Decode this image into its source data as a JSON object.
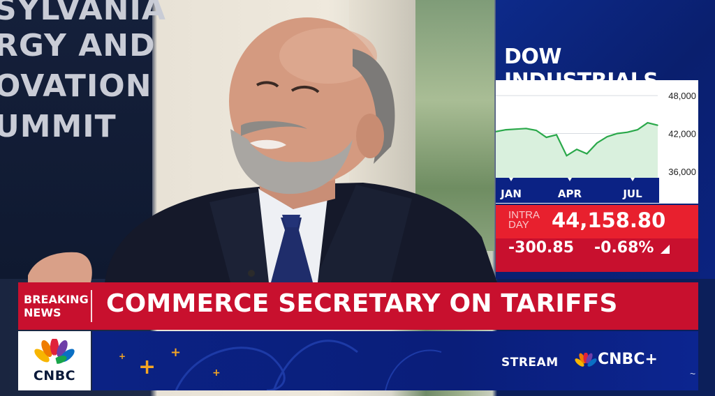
{
  "background_banner": {
    "lines": [
      "SYLVANIA",
      "RGY AND",
      "OVATION",
      "UMMIT"
    ]
  },
  "market_panel": {
    "title": "DOW INDUSTRIALS",
    "intraday_label": "INTRA DAY",
    "index_value": "44,158.80",
    "change_points": "-300.85",
    "change_percent": "-0.68%",
    "direction_icon": "down-triangle-icon",
    "colors": {
      "panel": "#0b2284",
      "value_bg": "#e8202e",
      "change_bg": "#c8102e",
      "line": "#2aa84a",
      "fill": "#d9f0dd"
    }
  },
  "chart_data": {
    "type": "area",
    "title": "DOW INDUSTRIALS",
    "x_tick_labels": [
      "JAN",
      "APR",
      "JUL"
    ],
    "y_tick_labels": [
      "48,000",
      "42,000",
      "36,000"
    ],
    "y_ticks": [
      48000,
      42000,
      36000
    ],
    "ylim": [
      35000,
      50000
    ],
    "grid": true,
    "x": [
      "Jan 2",
      "Jan 15",
      "Jan 30",
      "Feb 14",
      "Feb 28",
      "Mar 14",
      "Mar 28",
      "Apr 8",
      "Apr 15",
      "Apr 25",
      "May 9",
      "May 23",
      "Jun 6",
      "Jun 20",
      "Jul 3",
      "Jul 16",
      "Jul 25"
    ],
    "series": [
      {
        "values": [
          42300,
          42600,
          42700,
          42800,
          42500,
          41400,
          41800,
          38500,
          39500,
          38800,
          40500,
          41500,
          42000,
          42200,
          42600,
          43700,
          43300
        ]
      }
    ]
  },
  "lower_third": {
    "breaking_line1": "BREAKING",
    "breaking_line2": "NEWS",
    "headline": "COMMERCE SECRETARY ON TARIFFS",
    "logo_text": "CNBC",
    "stream_text": "STREAM",
    "stream_brand": "CNBC+",
    "accent_color": "#f5a623"
  }
}
